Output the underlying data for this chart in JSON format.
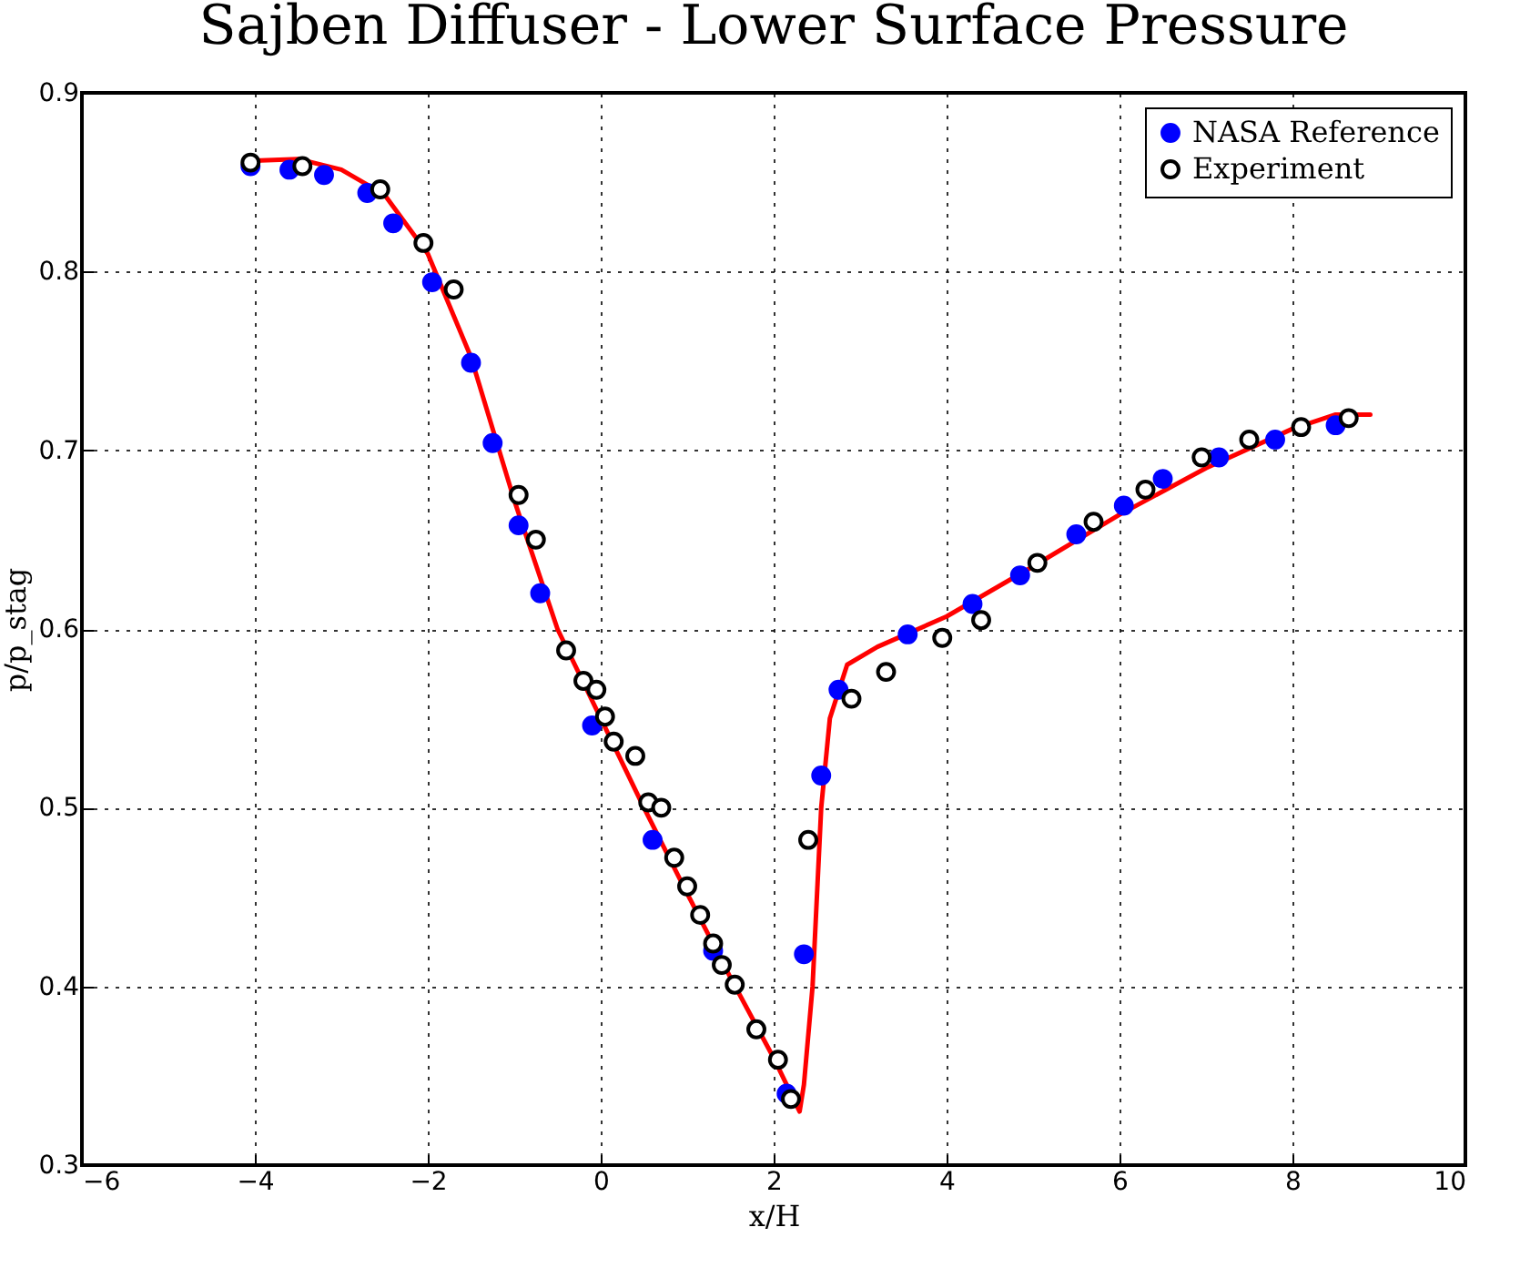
{
  "chart_data": {
    "type": "scatter",
    "title": "Sajben Diffuser - Lower Surface Pressure",
    "xlabel": "x/H",
    "ylabel": "p/p_stag",
    "xlim": [
      -6,
      10
    ],
    "xticks": [
      -6,
      -4,
      -2,
      0,
      2,
      4,
      6,
      8,
      10
    ],
    "ylim": [
      0.3,
      0.9
    ],
    "yticks": [
      0.3,
      0.4,
      0.5,
      0.6,
      0.7,
      0.8,
      0.9
    ],
    "grid": true,
    "legend": "top right",
    "series": [
      {
        "type": "line",
        "color": "#ff0000",
        "marker": "none",
        "x": [
          -4,
          -3.5,
          -3,
          -2.5,
          -2,
          -1.5,
          -1,
          -0.5,
          0,
          0.5,
          1,
          1.5,
          2,
          2.3,
          2.35,
          2.45,
          2.55,
          2.65,
          2.85,
          3.2,
          4,
          5,
          6,
          7,
          8,
          8.5,
          8.9
        ],
        "values": [
          0.862,
          0.863,
          0.857,
          0.843,
          0.81,
          0.752,
          0.672,
          0.6,
          0.55,
          0.5,
          0.452,
          0.405,
          0.36,
          0.33,
          0.345,
          0.4,
          0.5,
          0.55,
          0.58,
          0.59,
          0.607,
          0.635,
          0.664,
          0.69,
          0.712,
          0.72,
          0.72
        ]
      },
      {
        "name": "NASA Reference",
        "color": "#0000ff",
        "marker": "circle",
        "x": [
          -4.05,
          -3.6,
          -3.2,
          -2.7,
          -2.4,
          -1.95,
          -1.5,
          -1.25,
          -0.95,
          -0.7,
          -0.1,
          0.6,
          1.3,
          2.15,
          2.35,
          2.55,
          2.75,
          3.55,
          4.3,
          4.85,
          5.5,
          6.05,
          6.5,
          7.15,
          7.8,
          8.5
        ],
        "values": [
          0.859,
          0.857,
          0.854,
          0.844,
          0.827,
          0.794,
          0.749,
          0.704,
          0.658,
          0.62,
          0.546,
          0.482,
          0.42,
          0.34,
          0.418,
          0.518,
          0.566,
          0.597,
          0.614,
          0.63,
          0.653,
          0.669,
          0.684,
          0.696,
          0.706,
          0.714
        ]
      },
      {
        "name": "Experiment",
        "color": "#000000",
        "marker": "circle",
        "x": [
          -4.05,
          -3.45,
          -2.55,
          -2.05,
          -1.7,
          -0.95,
          -0.75,
          -0.4,
          -0.2,
          -0.05,
          0.05,
          0.15,
          0.4,
          0.55,
          0.7,
          0.85,
          1.0,
          1.15,
          1.3,
          1.4,
          1.55,
          1.8,
          2.05,
          2.2,
          2.4,
          2.9,
          3.3,
          3.95,
          4.4,
          5.05,
          5.7,
          6.3,
          6.95,
          7.5,
          8.1,
          8.65
        ],
        "values": [
          0.861,
          0.859,
          0.846,
          0.816,
          0.79,
          0.675,
          0.65,
          0.588,
          0.571,
          0.566,
          0.551,
          0.537,
          0.529,
          0.503,
          0.5,
          0.472,
          0.456,
          0.44,
          0.424,
          0.412,
          0.401,
          0.376,
          0.359,
          0.337,
          0.482,
          0.561,
          0.576,
          0.595,
          0.605,
          0.637,
          0.66,
          0.678,
          0.696,
          0.706,
          0.713,
          0.718
        ]
      }
    ]
  }
}
